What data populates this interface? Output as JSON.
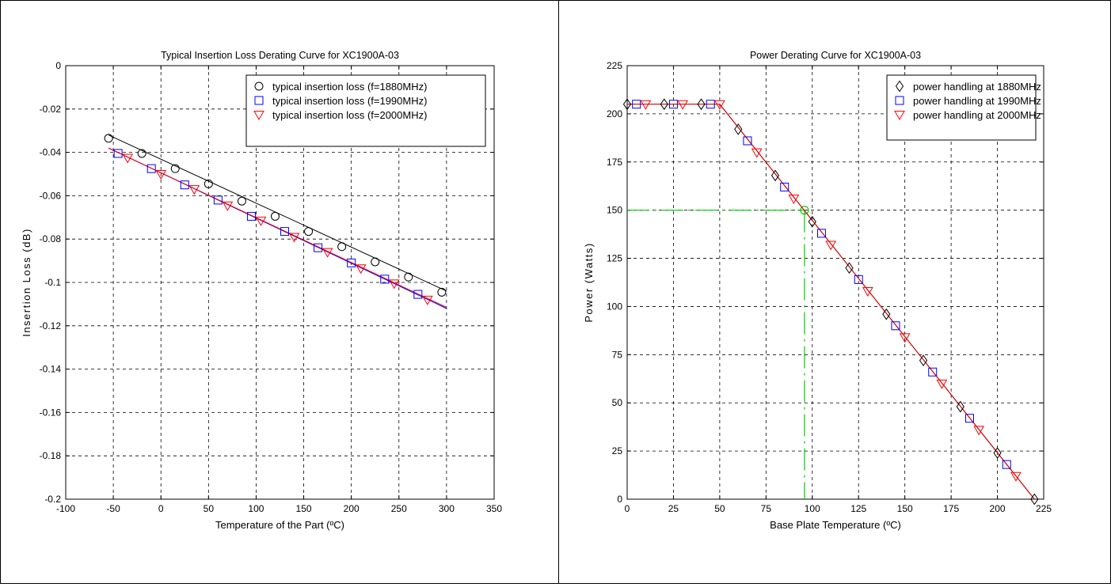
{
  "chart_data": [
    {
      "type": "line",
      "title": "Typical Insertion Loss Derating Curve for XC1900A-03",
      "xlabel": "Temperature of the Part (ºC)",
      "ylabel": "Insertion Loss (dB)",
      "xlim": [
        -100,
        350
      ],
      "ylim": [
        -0.2,
        0
      ],
      "xticks": [
        -100,
        -50,
        0,
        50,
        100,
        150,
        200,
        250,
        300,
        350
      ],
      "yticks": [
        0,
        -0.02,
        -0.04,
        -0.06,
        -0.08,
        -0.1,
        -0.12,
        -0.14,
        -0.16,
        -0.18,
        -0.2
      ],
      "xtick_labels": [
        "-100",
        "-50",
        "0",
        "50",
        "100",
        "150",
        "200",
        "250",
        "300",
        "350"
      ],
      "ytick_labels": [
        "0",
        "-0.02",
        "-0.04",
        "-0.06",
        "-0.08",
        "-0.1",
        "-0.12",
        "-0.14",
        "-0.16",
        "-0.18",
        "-0.2"
      ],
      "grid": true,
      "legend_position": "top-right",
      "series": [
        {
          "name": "typical insertion loss (f=1880MHz)",
          "marker": "circle",
          "color": "#000000",
          "x": [
            -55,
            -20,
            15,
            50,
            85,
            120,
            155,
            190,
            225,
            260,
            295
          ],
          "y": [
            -0.0335,
            -0.0405,
            -0.0475,
            -0.0545,
            -0.0625,
            -0.0695,
            -0.0765,
            -0.0835,
            -0.0905,
            -0.0975,
            -0.1045
          ],
          "fit": {
            "x": [
              -55,
              300
            ],
            "y": [
              -0.032,
              -0.104
            ],
            "color": "#000000"
          }
        },
        {
          "name": "typical insertion loss (f=1990MHz)",
          "marker": "square",
          "color": "#0000ff",
          "x": [
            -45,
            -10,
            25,
            60,
            95,
            130,
            165,
            200,
            235,
            270
          ],
          "y": [
            -0.0405,
            -0.0475,
            -0.055,
            -0.062,
            -0.0695,
            -0.0765,
            -0.084,
            -0.091,
            -0.0985,
            -0.1055
          ],
          "fit": {
            "x": [
              -55,
              300
            ],
            "y": [
              -0.038,
              -0.112
            ],
            "color": "#0000ff"
          }
        },
        {
          "name": "typical insertion loss (f=2000MHz)",
          "marker": "triangle-down",
          "color": "#ff0000",
          "x": [
            -35,
            0,
            35,
            70,
            105,
            140,
            175,
            210,
            245,
            280
          ],
          "y": [
            -0.0425,
            -0.05,
            -0.057,
            -0.0645,
            -0.0715,
            -0.079,
            -0.086,
            -0.0935,
            -0.1005,
            -0.108
          ],
          "fit": {
            "x": [
              -55,
              300
            ],
            "y": [
              -0.038,
              -0.1115
            ],
            "color": "#ff0000"
          }
        }
      ]
    },
    {
      "type": "line",
      "title": "Power Derating Curve for XC1900A-03",
      "xlabel": "Base Plate Temperature (ºC)",
      "ylabel": "Power (Watts)",
      "xlim": [
        0,
        225
      ],
      "ylim": [
        0,
        225
      ],
      "xticks": [
        0,
        25,
        50,
        75,
        100,
        125,
        150,
        175,
        200,
        225
      ],
      "yticks": [
        0,
        25,
        50,
        75,
        100,
        125,
        150,
        175,
        200,
        225
      ],
      "xtick_labels": [
        "0",
        "25",
        "50",
        "75",
        "100",
        "125",
        "150",
        "175",
        "200",
        "225"
      ],
      "ytick_labels": [
        "0",
        "25",
        "50",
        "75",
        "100",
        "125",
        "150",
        "175",
        "200",
        "225"
      ],
      "grid": true,
      "legend_position": "top-right",
      "series": [
        {
          "name": "power handling at 1880MHz",
          "marker": "diamond",
          "color": "#000000",
          "x": [
            0,
            20,
            40,
            60,
            80,
            100,
            120,
            140,
            160,
            180,
            200,
            220
          ],
          "y": [
            205,
            205,
            205,
            192,
            168,
            144,
            120,
            96,
            72,
            48,
            24,
            0
          ]
        },
        {
          "name": "power handling at 1990MHz",
          "marker": "square",
          "color": "#0000ff",
          "x": [
            5,
            25,
            45,
            65,
            85,
            105,
            125,
            145,
            165,
            185,
            205
          ],
          "y": [
            205,
            205,
            205,
            186,
            162,
            138,
            114,
            90,
            66,
            42,
            18
          ]
        },
        {
          "name": "power handling at 2000MHz",
          "marker": "triangle-down",
          "color": "#ff0000",
          "x": [
            10,
            30,
            50,
            70,
            90,
            110,
            130,
            150,
            170,
            190,
            210
          ],
          "y": [
            205,
            205,
            205,
            180,
            156,
            132,
            108,
            84,
            60,
            36,
            12
          ]
        }
      ],
      "derating_line": {
        "x": [
          0,
          50,
          220
        ],
        "y": [
          205,
          205,
          0
        ],
        "color": "#cc0000"
      },
      "annotation": {
        "point": [
          95.8,
          150
        ],
        "color": "#00cc00",
        "style": "dash-dot guides to both axes"
      }
    }
  ]
}
